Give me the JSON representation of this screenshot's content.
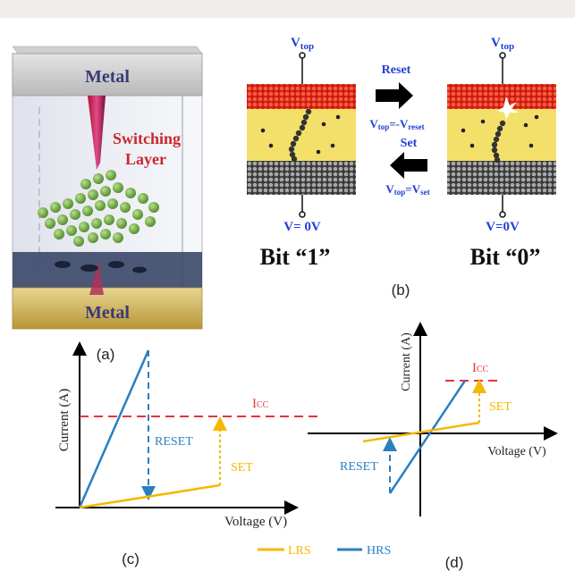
{
  "panel_a": {
    "metal_top": "Metal",
    "metal_bottom": "Metal",
    "switching_line1": "Switching",
    "switching_line2": "Layer",
    "caption": "(a)"
  },
  "panel_b": {
    "left_vtop_main": "V",
    "left_vtop_sub": "top",
    "right_vtop_main": "V",
    "right_vtop_sub": "top",
    "reset_label": "Reset",
    "reset_eq_main": "V",
    "reset_eq_sub": "top",
    "reset_eq_mid": "=-V",
    "reset_eq_sub2": "reset",
    "set_label": "Set",
    "set_eq_main": "V",
    "set_eq_sub": "top",
    "set_eq_mid": "=V",
    "set_eq_sub2": "set",
    "left_ground": "V= 0V",
    "right_ground": "V=0V",
    "bit1": "Bit “1”",
    "bit0": "Bit “0”",
    "caption": "(b)"
  },
  "panel_c": {
    "ylabel": "Current (A)",
    "xlabel": "Voltage (V)",
    "icc_main": "I",
    "icc_sub": "CC",
    "reset": "RESET",
    "set": "SET",
    "caption": "(c)"
  },
  "panel_d": {
    "ylabel": "Current (A)",
    "xlabel": "Voltage (V)",
    "icc_main": "I",
    "icc_sub": "CC",
    "reset": "RESET",
    "set": "SET",
    "caption": "(d)"
  },
  "legend": {
    "lrs": "LRS",
    "hrs": "HRS"
  },
  "colors": {
    "lrs": "#f5b800",
    "hrs": "#2a7fc0",
    "icc": "#e8323c",
    "label_blue": "#1f3fd6",
    "switching_red": "#c8282d",
    "metal_text": "#3a3a78"
  }
}
